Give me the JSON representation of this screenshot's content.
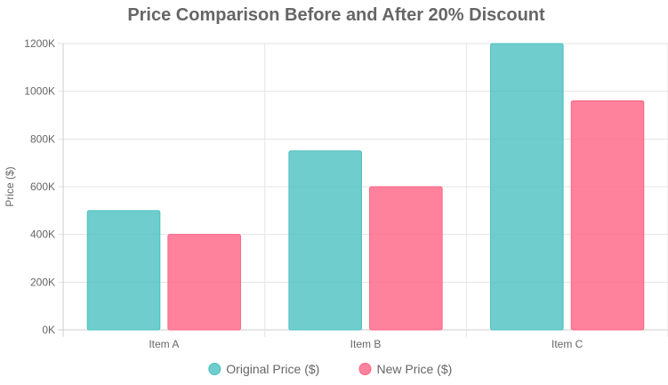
{
  "chart_data": {
    "type": "bar",
    "title": "Price Comparison Before and After 20% Discount",
    "xlabel": "",
    "ylabel": "Price ($)",
    "categories": [
      "Item A",
      "Item B",
      "Item C"
    ],
    "ylim": [
      0,
      1200000
    ],
    "yticks": [
      0,
      200000,
      400000,
      600000,
      800000,
      1000000,
      1200000
    ],
    "ytick_labels": [
      "0K",
      "200K",
      "400K",
      "600K",
      "800K",
      "1000K",
      "1200K"
    ],
    "grid": true,
    "legend_position": "bottom",
    "series": [
      {
        "name": "Original Price ($)",
        "values": [
          500000,
          750000,
          1200000
        ],
        "color": "#4bc0c0"
      },
      {
        "name": "New Price ($)",
        "values": [
          400000,
          600000,
          960000
        ],
        "color": "#ff6384"
      }
    ]
  }
}
